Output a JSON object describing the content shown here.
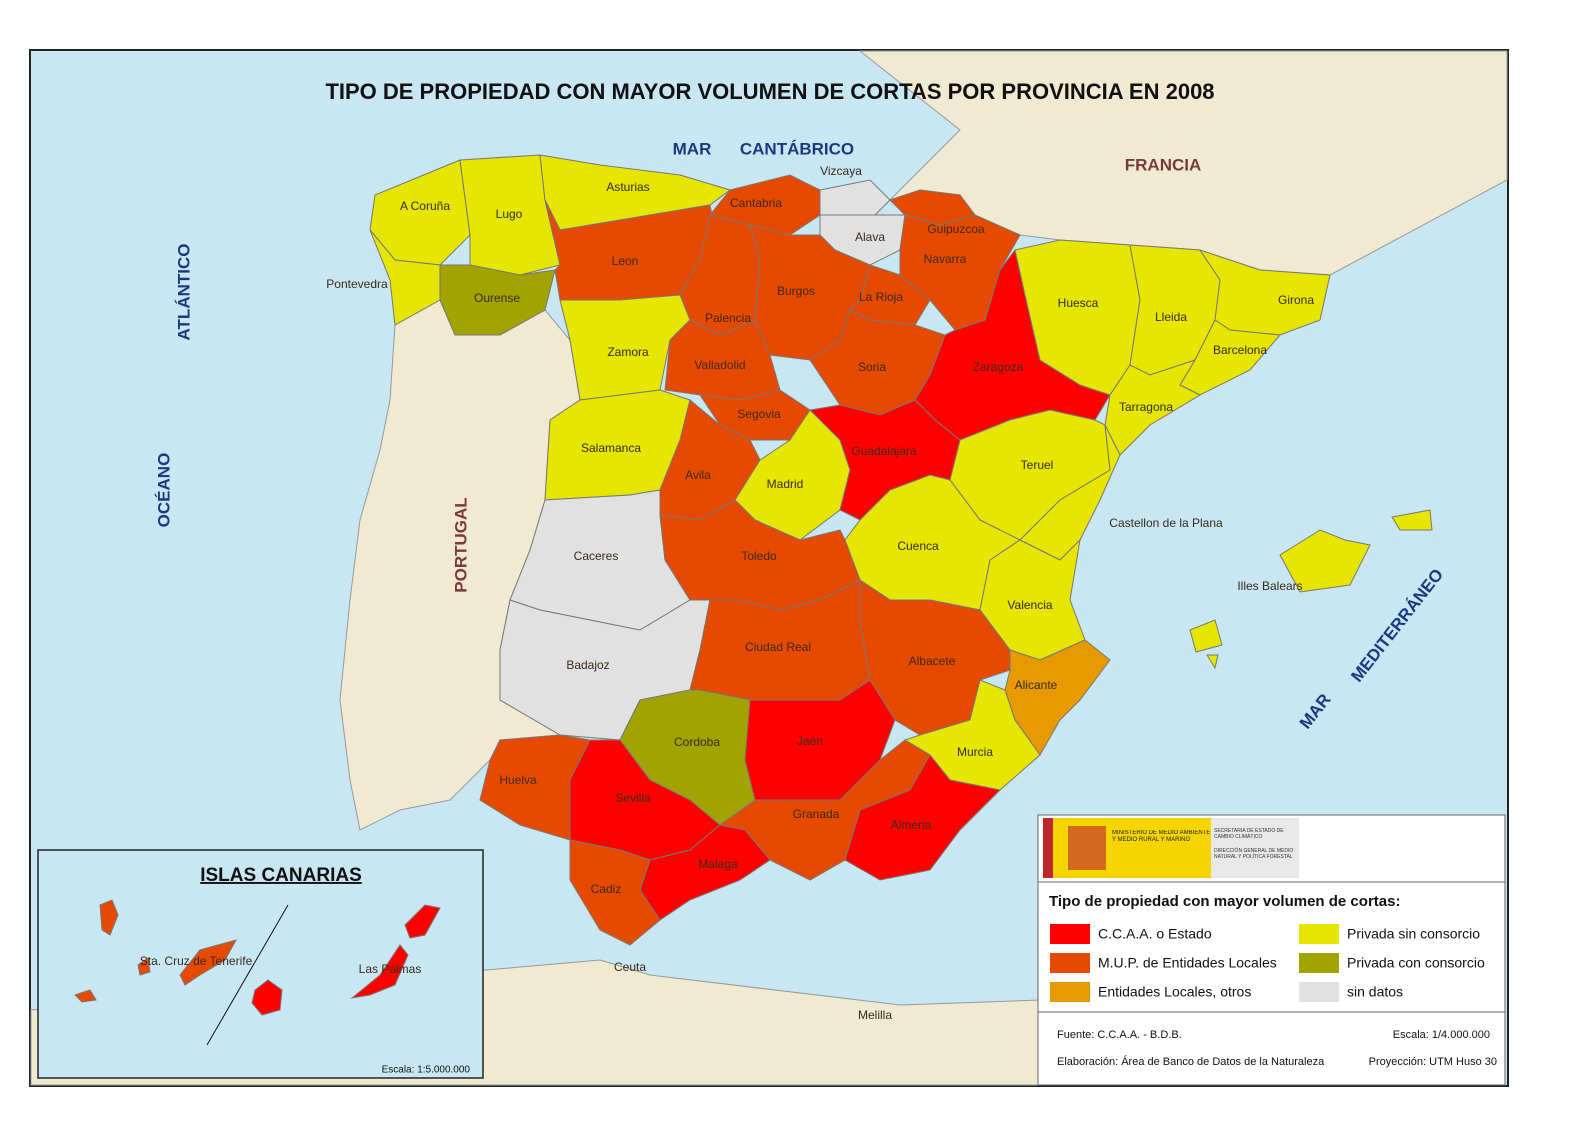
{
  "title": "TIPO DE PROPIEDAD CON MAYOR VOLUMEN DE CORTAS POR PROVINCIA EN 2008",
  "seas": [
    "MAR",
    "CANTÁBRICO",
    "OCÉANO",
    "ATLÁNTICO",
    "MAR",
    "MEDITERRÁNEO"
  ],
  "countries": [
    "FRANCIA",
    "PORTUGAL"
  ],
  "legend": {
    "title": "Tipo de propiedad con mayor volumen de cortas:",
    "items": [
      {
        "label": "C.C.A.A. o Estado",
        "color": "#ff0000"
      },
      {
        "label": "M.U.P. de Entidades Locales",
        "color": "#e64a00"
      },
      {
        "label": "Entidades Locales, otros",
        "color": "#e69a00"
      },
      {
        "label": "Privada sin consorcio",
        "color": "#e6e600"
      },
      {
        "label": "Privada con consorcio",
        "color": "#a3a300"
      },
      {
        "label": "sin datos",
        "color": "#e1e1e1"
      }
    ]
  },
  "logo": [
    "MINISTERIO DE MEDIO AMBIENTE Y MEDIO RURAL Y MARINO",
    "SECRETARÍA DE ESTADO DE CAMBIO CLIMÁTICO",
    "DIRECCIÓN GENERAL DE MEDIO NATURAL Y POLÍTICA FORESTAL"
  ],
  "footer": {
    "fuente": "Fuente: C.C.A.A. - B.D.B.",
    "escala": "Escala: 1/4.000.000",
    "elaboracion": "Elaboración: Área de Banco de Datos de la Naturaleza",
    "proyeccion": "Proyección: UTM  Huso 30"
  },
  "provinces": [
    {
      "name": "A Coruña",
      "category": 3
    },
    {
      "name": "Lugo",
      "category": 3
    },
    {
      "name": "Pontevedra",
      "category": 3
    },
    {
      "name": "Ourense",
      "category": 4
    },
    {
      "name": "Asturias",
      "category": 3
    },
    {
      "name": "Cantabria",
      "category": 1
    },
    {
      "name": "Vizcaya",
      "category": 5
    },
    {
      "name": "Guipuzcoa",
      "category": 1
    },
    {
      "name": "Alava",
      "category": 5
    },
    {
      "name": "Navarra",
      "category": 1
    },
    {
      "name": "Leon",
      "category": 1
    },
    {
      "name": "Palencia",
      "category": 1
    },
    {
      "name": "Burgos",
      "category": 1
    },
    {
      "name": "La Rioja",
      "category": 1
    },
    {
      "name": "Zamora",
      "category": 3
    },
    {
      "name": "Valladolid",
      "category": 1
    },
    {
      "name": "Soria",
      "category": 1
    },
    {
      "name": "Zaragoza",
      "category": 0
    },
    {
      "name": "Huesca",
      "category": 3
    },
    {
      "name": "Lleida",
      "category": 3
    },
    {
      "name": "Girona",
      "category": 3
    },
    {
      "name": "Barcelona",
      "category": 3
    },
    {
      "name": "Tarragona",
      "category": 3
    },
    {
      "name": "Salamanca",
      "category": 3
    },
    {
      "name": "Segovia",
      "category": 1
    },
    {
      "name": "Avila",
      "category": 1
    },
    {
      "name": "Madrid",
      "category": 3
    },
    {
      "name": "Guadalajara",
      "category": 0
    },
    {
      "name": "Teruel",
      "category": 3
    },
    {
      "name": "Castellon de la Plana",
      "category": 3
    },
    {
      "name": "Cuenca",
      "category": 3
    },
    {
      "name": "Caceres",
      "category": 5
    },
    {
      "name": "Toledo",
      "category": 1
    },
    {
      "name": "Valencia",
      "category": 3
    },
    {
      "name": "Badajoz",
      "category": 5
    },
    {
      "name": "Ciudad Real",
      "category": 1
    },
    {
      "name": "Albacete",
      "category": 1
    },
    {
      "name": "Alicante",
      "category": 2
    },
    {
      "name": "Murcia",
      "category": 3
    },
    {
      "name": "Cordoba",
      "category": 4
    },
    {
      "name": "Jaen",
      "category": 0
    },
    {
      "name": "Huelva",
      "category": 1
    },
    {
      "name": "Sevilla",
      "category": 0
    },
    {
      "name": "Granada",
      "category": 1
    },
    {
      "name": "Almeria",
      "category": 0
    },
    {
      "name": "Malaga",
      "category": 0
    },
    {
      "name": "Cadiz",
      "category": 1
    },
    {
      "name": "Illes Balears",
      "category": 3
    }
  ],
  "cities": [
    "Ceuta",
    "Melilla"
  ],
  "canarias": {
    "title": "ISLAS CANARIAS",
    "scale": "Escala: 1:5.000.000",
    "provinces": [
      {
        "name": "Sta. Cruz de Tenerife",
        "category": 1
      },
      {
        "name": "Las Palmas",
        "category": 0
      }
    ]
  }
}
